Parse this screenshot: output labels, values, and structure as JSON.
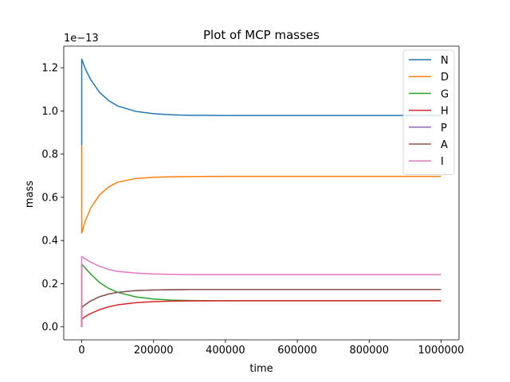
{
  "chart_data": {
    "type": "line",
    "title": "Plot of MCP masses",
    "xlabel": "time",
    "ylabel": "mass",
    "y_offset_text": "1e−13",
    "xlim": [
      -50000,
      1050000
    ],
    "ylim": [
      -0.06,
      1.3
    ],
    "x_ticks": [
      0,
      200000,
      400000,
      600000,
      800000,
      1000000
    ],
    "x_tick_labels": [
      "0",
      "200000",
      "400000",
      "600000",
      "800000",
      "1000000"
    ],
    "y_ticks": [
      0.0,
      0.2,
      0.4,
      0.6,
      0.8,
      1.0,
      1.2
    ],
    "y_tick_labels": [
      "0.0",
      "0.2",
      "0.4",
      "0.6",
      "0.8",
      "1.0",
      "1.2"
    ],
    "grid": false,
    "legend_position": "top-right",
    "x": [
      0,
      10000,
      25000,
      50000,
      75000,
      100000,
      150000,
      200000,
      250000,
      300000,
      400000,
      500000,
      600000,
      700000,
      800000,
      900000,
      1000000
    ],
    "series": [
      {
        "name": "N",
        "color": "#1f77b4",
        "start": 0.84,
        "values": [
          1.24,
          1.195,
          1.145,
          1.085,
          1.048,
          1.023,
          0.998,
          0.987,
          0.982,
          0.98,
          0.979,
          0.979,
          0.979,
          0.979,
          0.979,
          0.979,
          0.979
        ]
      },
      {
        "name": "D",
        "color": "#ff7f0e",
        "start": 0.84,
        "values": [
          0.435,
          0.49,
          0.55,
          0.612,
          0.648,
          0.67,
          0.687,
          0.693,
          0.695,
          0.696,
          0.697,
          0.697,
          0.697,
          0.697,
          0.697,
          0.697,
          0.697
        ]
      },
      {
        "name": "G",
        "color": "#2ca02c",
        "start": 0.0,
        "values": [
          0.29,
          0.272,
          0.245,
          0.205,
          0.178,
          0.16,
          0.139,
          0.129,
          0.124,
          0.122,
          0.121,
          0.121,
          0.121,
          0.121,
          0.121,
          0.121,
          0.121
        ]
      },
      {
        "name": "H",
        "color": "#d62728",
        "start": 0.0,
        "values": [
          0.035,
          0.048,
          0.062,
          0.08,
          0.093,
          0.102,
          0.112,
          0.117,
          0.119,
          0.12,
          0.121,
          0.121,
          0.121,
          0.121,
          0.121,
          0.121,
          0.121
        ]
      },
      {
        "name": "P",
        "color": "#9467bd",
        "start": 0.0,
        "values": [
          0.09,
          0.103,
          0.12,
          0.14,
          0.152,
          0.16,
          0.168,
          0.171,
          0.172,
          0.173,
          0.173,
          0.173,
          0.173,
          0.173,
          0.173,
          0.173,
          0.173
        ]
      },
      {
        "name": "A",
        "color": "#8c564b",
        "start": 0.0,
        "values": [
          0.09,
          0.103,
          0.12,
          0.14,
          0.152,
          0.16,
          0.168,
          0.171,
          0.172,
          0.173,
          0.173,
          0.173,
          0.173,
          0.173,
          0.173,
          0.173,
          0.173
        ]
      },
      {
        "name": "I",
        "color": "#e377c2",
        "start": 0.0,
        "values": [
          0.325,
          0.315,
          0.3,
          0.28,
          0.266,
          0.257,
          0.249,
          0.245,
          0.243,
          0.242,
          0.242,
          0.242,
          0.242,
          0.242,
          0.242,
          0.242,
          0.242
        ]
      }
    ]
  }
}
